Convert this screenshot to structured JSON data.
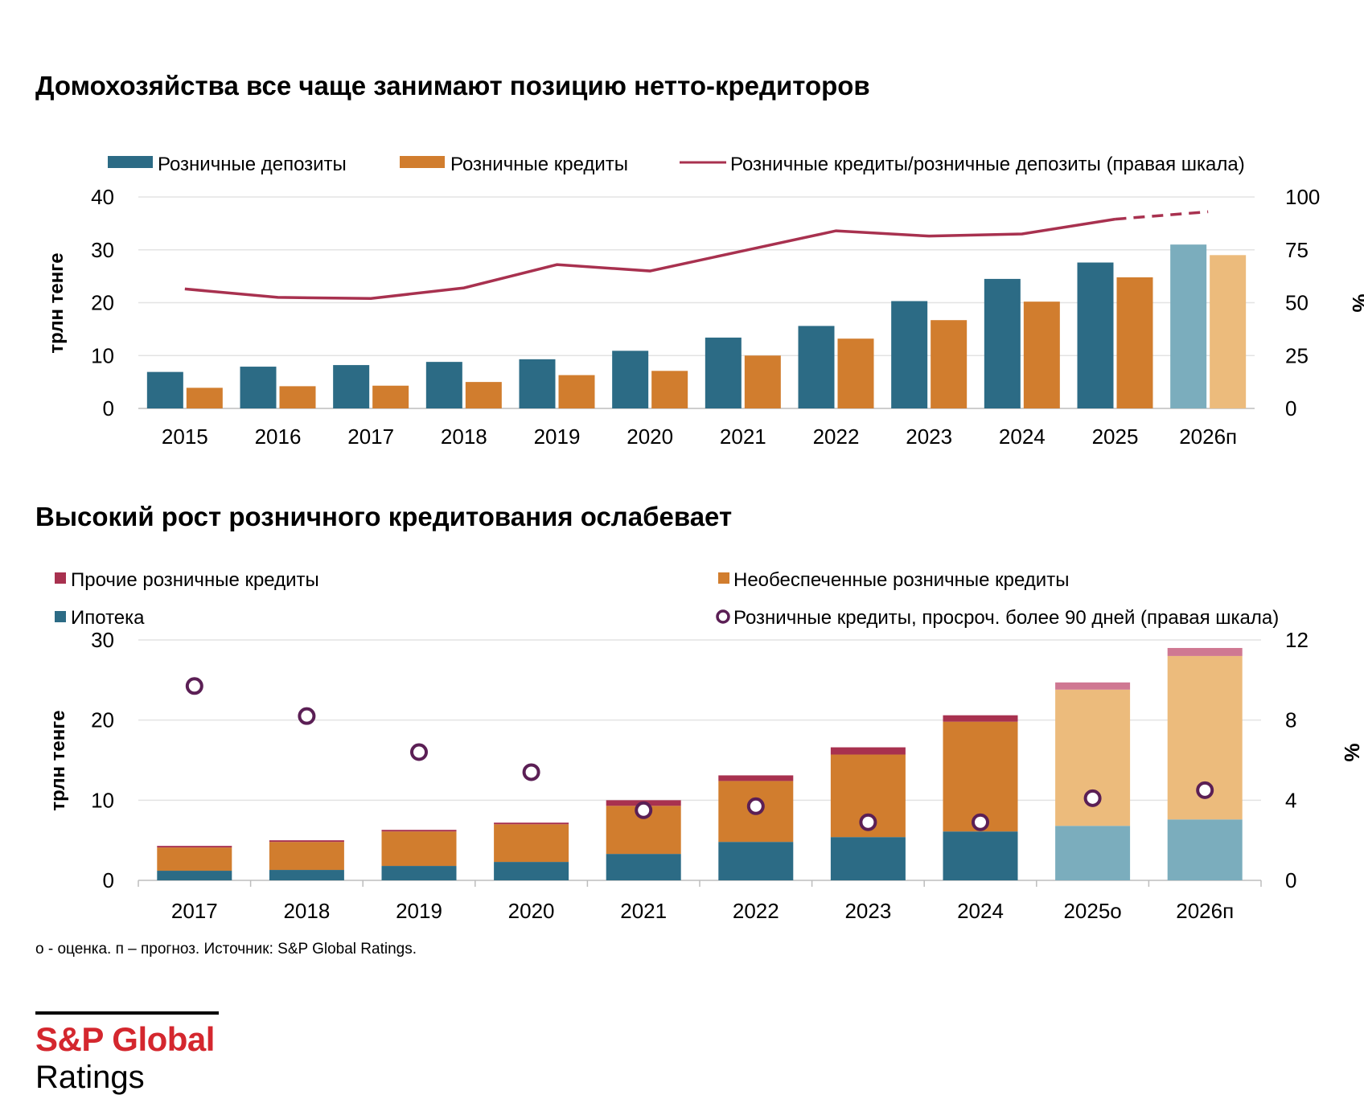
{
  "chart_data": [
    {
      "type": "bar",
      "title": "Домохозяйства все чаще занимают позицию нетто-кредиторов",
      "ylabel": "трлн тенге",
      "y2label": "%",
      "ylim": [
        0,
        40
      ],
      "yticks": [
        "0",
        "10",
        "20",
        "30",
        "40"
      ],
      "y2lim": [
        0,
        100
      ],
      "y2ticks": [
        "0",
        "25",
        "50",
        "75",
        "100"
      ],
      "categories": [
        "2015",
        "2016",
        "2017",
        "2018",
        "2019",
        "2020",
        "2021",
        "2022",
        "2023",
        "2024",
        "2025",
        "2026п"
      ],
      "forecast_from_index": 11,
      "dashed_line_from_index": 10,
      "series": [
        {
          "name": "Розничные депозиты",
          "kind": "bar",
          "color": "#2c6b85",
          "forecast_color": "#7badbd",
          "values": [
            6.9,
            7.9,
            8.2,
            8.8,
            9.3,
            10.9,
            13.4,
            15.6,
            20.3,
            24.5,
            27.6,
            31.0
          ]
        },
        {
          "name": "Розничные кредиты",
          "kind": "bar",
          "color": "#d17d2e",
          "forecast_color": "#ecbb7c",
          "values": [
            3.9,
            4.2,
            4.3,
            5.0,
            6.3,
            7.1,
            10.0,
            13.2,
            16.7,
            20.2,
            24.8,
            29.0
          ]
        },
        {
          "name": "Розничные кредиты/розничные депозиты (правая шкала)",
          "kind": "line",
          "axis": "right",
          "color": "#a8314f",
          "values": [
            56.5,
            52.5,
            52,
            57,
            68,
            65,
            74.5,
            84,
            81.5,
            82.5,
            89.5,
            93
          ]
        }
      ],
      "legend_position": "top",
      "grid": true
    },
    {
      "type": "bar",
      "stacked": true,
      "title": "Высокий рост розничного кредитования ослабевает",
      "ylabel": "трлн тенге",
      "y2label": "%",
      "ylim": [
        0,
        30
      ],
      "yticks": [
        "0",
        "10",
        "20",
        "30"
      ],
      "y2lim": [
        0,
        12
      ],
      "y2ticks": [
        "0",
        "4",
        "8",
        "12"
      ],
      "categories": [
        "2017",
        "2018",
        "2019",
        "2020",
        "2021",
        "2022",
        "2023",
        "2024",
        "2025о",
        "2026п"
      ],
      "forecast_from_index": 8,
      "series": [
        {
          "name": "Ипотека",
          "kind": "bar",
          "color": "#2c6b85",
          "forecast_color": "#7badbd",
          "values": [
            1.2,
            1.3,
            1.8,
            2.3,
            3.3,
            4.8,
            5.4,
            6.1,
            6.8,
            7.6
          ]
        },
        {
          "name": "Необеспеченные розничные кредиты",
          "kind": "bar",
          "color": "#d17d2e",
          "forecast_color": "#ecbb7c",
          "values": [
            2.9,
            3.5,
            4.3,
            4.7,
            6.0,
            7.6,
            10.3,
            13.7,
            17.0,
            20.4
          ]
        },
        {
          "name": "Прочие розничные кредиты",
          "kind": "bar",
          "color": "#a8314f",
          "forecast_color": "#cf7892",
          "values": [
            0.2,
            0.2,
            0.2,
            0.2,
            0.7,
            0.7,
            0.9,
            0.8,
            0.9,
            1.0
          ]
        },
        {
          "name": "Розничные кредиты, просроч. более 90 дней  (правая шкала)",
          "kind": "scatter",
          "axis": "right",
          "color": "#5b1f55",
          "values": [
            9.7,
            8.2,
            6.4,
            5.4,
            3.5,
            3.7,
            2.9,
            2.9,
            4.1,
            4.5
          ]
        }
      ],
      "legend_position": "top",
      "grid": true
    }
  ],
  "footnote": "о - оценка. п – прогноз. Источник: S&P Global Ratings.",
  "logo": {
    "line1": "S&P Global",
    "line2": "Ratings",
    "accent": "#d4272e"
  }
}
